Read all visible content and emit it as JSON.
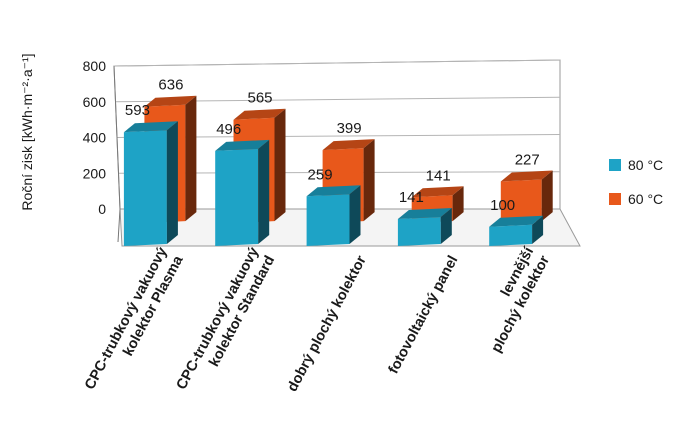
{
  "chart_data": {
    "type": "bar",
    "style": "3d-clustered-column",
    "categories": [
      [
        "CPC-trubkový vakuový",
        "kolektor Plasma"
      ],
      [
        "CPC-trubkový vakuový",
        "kolektor Standard"
      ],
      [
        "dobrý plochý kolektor"
      ],
      [
        "fotovoltaický panel"
      ],
      [
        "levnější",
        "plochý kolektor"
      ]
    ],
    "series": [
      {
        "name": "80 °C",
        "color": "#1ea3c6",
        "values": [
          593,
          496,
          259,
          141,
          100
        ]
      },
      {
        "name": "60 °C",
        "color": "#e8581b",
        "values": [
          636,
          565,
          399,
          141,
          227
        ]
      }
    ],
    "ylabel": "Roční zisk [kWh·m⁻²·a⁻¹]",
    "ylim": [
      0,
      800
    ],
    "yticks": [
      "0",
      "200",
      "400",
      "600",
      "800"
    ],
    "grid": true,
    "legend_position": "right"
  }
}
